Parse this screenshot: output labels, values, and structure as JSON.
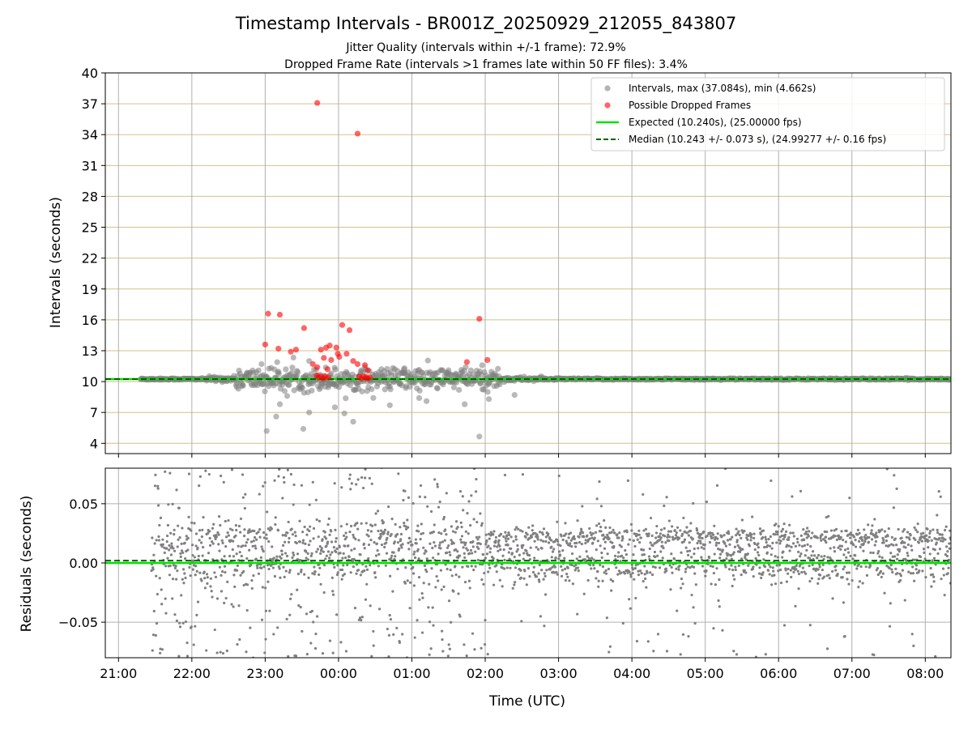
{
  "chart_data": {
    "type": "scatter",
    "title": "Timestamp Intervals - BR001Z_20250929_212055_843807",
    "subtitle_lines": [
      "Jitter Quality (intervals within +/-1 frame): 72.9%",
      "Dropped Frame Rate (intervals >1 frames late within 50 FF files): 3.4%"
    ],
    "x_axis": {
      "label": "Time (UTC)",
      "ticks": [
        "21:00",
        "22:00",
        "23:00",
        "00:00",
        "01:00",
        "02:00",
        "03:00",
        "04:00",
        "05:00",
        "06:00",
        "07:00",
        "08:00"
      ],
      "range_hours": [
        -0.18,
        11.35
      ]
    },
    "top_panel": {
      "ylabel": "Intervals (seconds)",
      "ylim": [
        3.0,
        40.0
      ],
      "yticks": [
        4,
        7,
        10,
        13,
        16,
        19,
        22,
        25,
        28,
        31,
        34,
        37,
        40
      ],
      "legend_position": "top-right",
      "legend": [
        {
          "key": "intervals",
          "label": "Intervals, max (37.084s), min (4.662s)",
          "marker": "dot",
          "color": "#808080"
        },
        {
          "key": "dropped",
          "label": "Possible Dropped Frames",
          "marker": "dot",
          "color": "#ff0000"
        },
        {
          "key": "expected",
          "label": "Expected (10.240s), (25.00000 fps)",
          "marker": "line",
          "color": "#00e000"
        },
        {
          "key": "median",
          "label": "Median (10.243 +/- 0.073 s), (24.99277 +/- 0.16 fps)",
          "marker": "dashed",
          "color": "#006400"
        }
      ],
      "expected_value": 10.24,
      "median_value": 10.243,
      "interval_max": 37.084,
      "interval_min": 4.662,
      "dropped_frames": [
        {
          "t": 2.71,
          "y": 37.08
        },
        {
          "t": 3.26,
          "y": 34.1
        },
        {
          "t": 2.04,
          "y": 16.6
        },
        {
          "t": 2.2,
          "y": 16.5
        },
        {
          "t": 4.92,
          "y": 16.1
        },
        {
          "t": 3.05,
          "y": 15.5
        },
        {
          "t": 2.53,
          "y": 15.2
        },
        {
          "t": 3.15,
          "y": 15.0
        },
        {
          "t": 2.0,
          "y": 13.6
        },
        {
          "t": 2.18,
          "y": 13.2
        },
        {
          "t": 2.35,
          "y": 12.9
        },
        {
          "t": 2.42,
          "y": 13.1
        },
        {
          "t": 2.76,
          "y": 13.1
        },
        {
          "t": 2.83,
          "y": 13.3
        },
        {
          "t": 2.88,
          "y": 13.5
        },
        {
          "t": 2.97,
          "y": 13.3
        },
        {
          "t": 2.99,
          "y": 12.7
        },
        {
          "t": 3.11,
          "y": 12.7
        },
        {
          "t": 2.8,
          "y": 12.3
        },
        {
          "t": 2.9,
          "y": 12.1
        },
        {
          "t": 3.01,
          "y": 12.4
        },
        {
          "t": 3.2,
          "y": 12.0
        },
        {
          "t": 3.26,
          "y": 11.7
        },
        {
          "t": 3.36,
          "y": 11.6
        },
        {
          "t": 4.75,
          "y": 11.9
        },
        {
          "t": 5.03,
          "y": 12.1
        },
        {
          "t": 2.65,
          "y": 11.7
        },
        {
          "t": 2.71,
          "y": 11.4
        },
        {
          "t": 2.85,
          "y": 11.2
        },
        {
          "t": 3.4,
          "y": 11.1
        },
        {
          "t": 2.7,
          "y": 10.6
        },
        {
          "t": 2.73,
          "y": 10.4
        },
        {
          "t": 2.76,
          "y": 10.5
        },
        {
          "t": 2.79,
          "y": 10.3
        },
        {
          "t": 2.82,
          "y": 10.5
        },
        {
          "t": 2.86,
          "y": 10.4
        },
        {
          "t": 3.28,
          "y": 10.5
        },
        {
          "t": 3.31,
          "y": 10.3
        },
        {
          "t": 3.34,
          "y": 10.5
        },
        {
          "t": 3.37,
          "y": 10.4
        },
        {
          "t": 3.4,
          "y": 10.3
        },
        {
          "t": 3.43,
          "y": 10.4
        }
      ]
    },
    "bottom_panel": {
      "ylabel": "Residuals (seconds)",
      "ylim": [
        -0.08,
        0.08
      ],
      "yticks": [
        {
          "value": 0.05,
          "label": "0.05"
        },
        {
          "value": 0.0,
          "label": "0.00"
        },
        {
          "value": -0.05,
          "label": "−0.05"
        }
      ],
      "expected_residual": 0.0,
      "median_residual": 0.002
    },
    "grid": true,
    "colors": {
      "intervals": "#808080",
      "dropped": "#ff0000",
      "expected": "#00e000",
      "median": "#006400",
      "hgrid_top": "#d8c08a",
      "grid": "#b0b0b0"
    }
  }
}
